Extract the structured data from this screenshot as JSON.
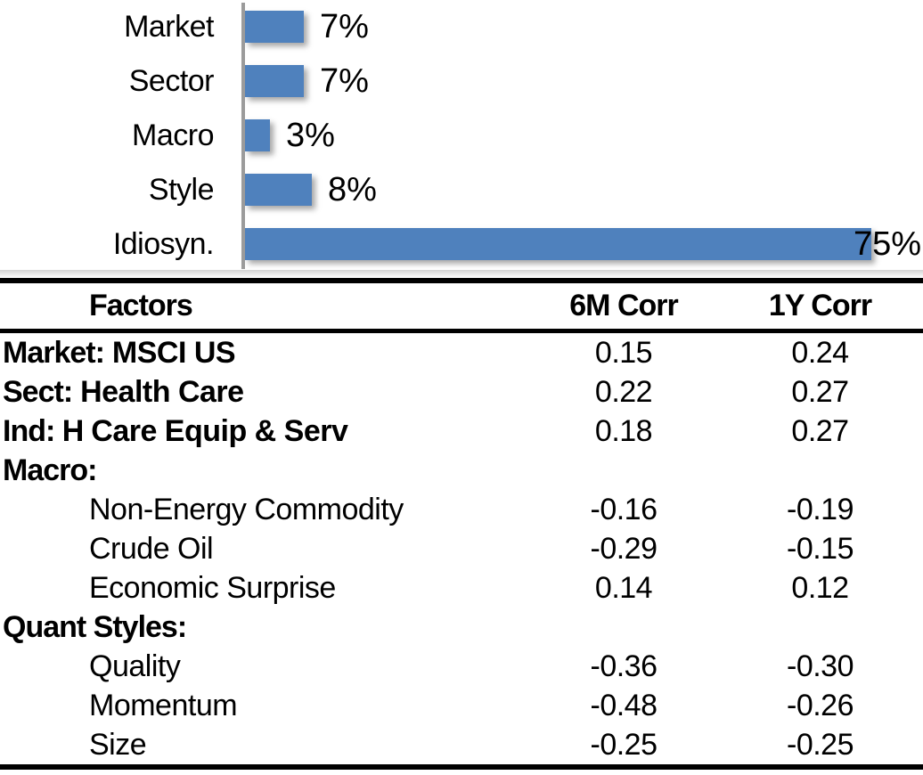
{
  "chart_data": [
    {
      "type": "bar",
      "orientation": "horizontal",
      "title": "",
      "xlabel": "",
      "ylabel": "",
      "categories": [
        "Market",
        "Sector",
        "Macro",
        "Style",
        "Idiosyn."
      ],
      "values": [
        7,
        7,
        3,
        8,
        75
      ],
      "labels": [
        "7%",
        "7%",
        "3%",
        "8%",
        "75%"
      ],
      "unit": "%",
      "xlim": [
        0,
        80
      ],
      "grid": false,
      "legend": "none",
      "bar_color": "#4f81bd",
      "axis_color": "#9b9b9b"
    },
    {
      "type": "table",
      "headers": [
        "Factors",
        "6M Corr",
        "1Y Corr"
      ],
      "rows": [
        {
          "strong": "Market:",
          "rest": " MSCI US",
          "indent": false,
          "c6": "0.15",
          "c1y": "0.24"
        },
        {
          "strong": "Sect:",
          "rest": " Health Care",
          "indent": false,
          "c6": "0.22",
          "c1y": "0.27"
        },
        {
          "strong": "Ind: H",
          "rest": " Care Equip & Serv",
          "indent": false,
          "c6": "0.18",
          "c1y": "0.27"
        },
        {
          "strong": "Macro:",
          "rest": "",
          "indent": false,
          "c6": "",
          "c1y": ""
        },
        {
          "strong": "",
          "rest": "Non-Energy Commodity",
          "indent": true,
          "c6": "-0.16",
          "c1y": "-0.19"
        },
        {
          "strong": "",
          "rest": "Crude Oil",
          "indent": true,
          "c6": "-0.29",
          "c1y": "-0.15"
        },
        {
          "strong": "",
          "rest": "Economic Surprise",
          "indent": true,
          "c6": "0.14",
          "c1y": "0.12"
        },
        {
          "strong": "Quant Styles:",
          "rest": "",
          "indent": false,
          "c6": "",
          "c1y": ""
        },
        {
          "strong": "",
          "rest": "Quality",
          "indent": true,
          "c6": "-0.36",
          "c1y": "-0.30"
        },
        {
          "strong": "",
          "rest": "Momentum",
          "indent": true,
          "c6": "-0.48",
          "c1y": "-0.26"
        },
        {
          "strong": "",
          "rest": "Size",
          "indent": true,
          "c6": "-0.25",
          "c1y": "-0.25"
        }
      ]
    }
  ]
}
